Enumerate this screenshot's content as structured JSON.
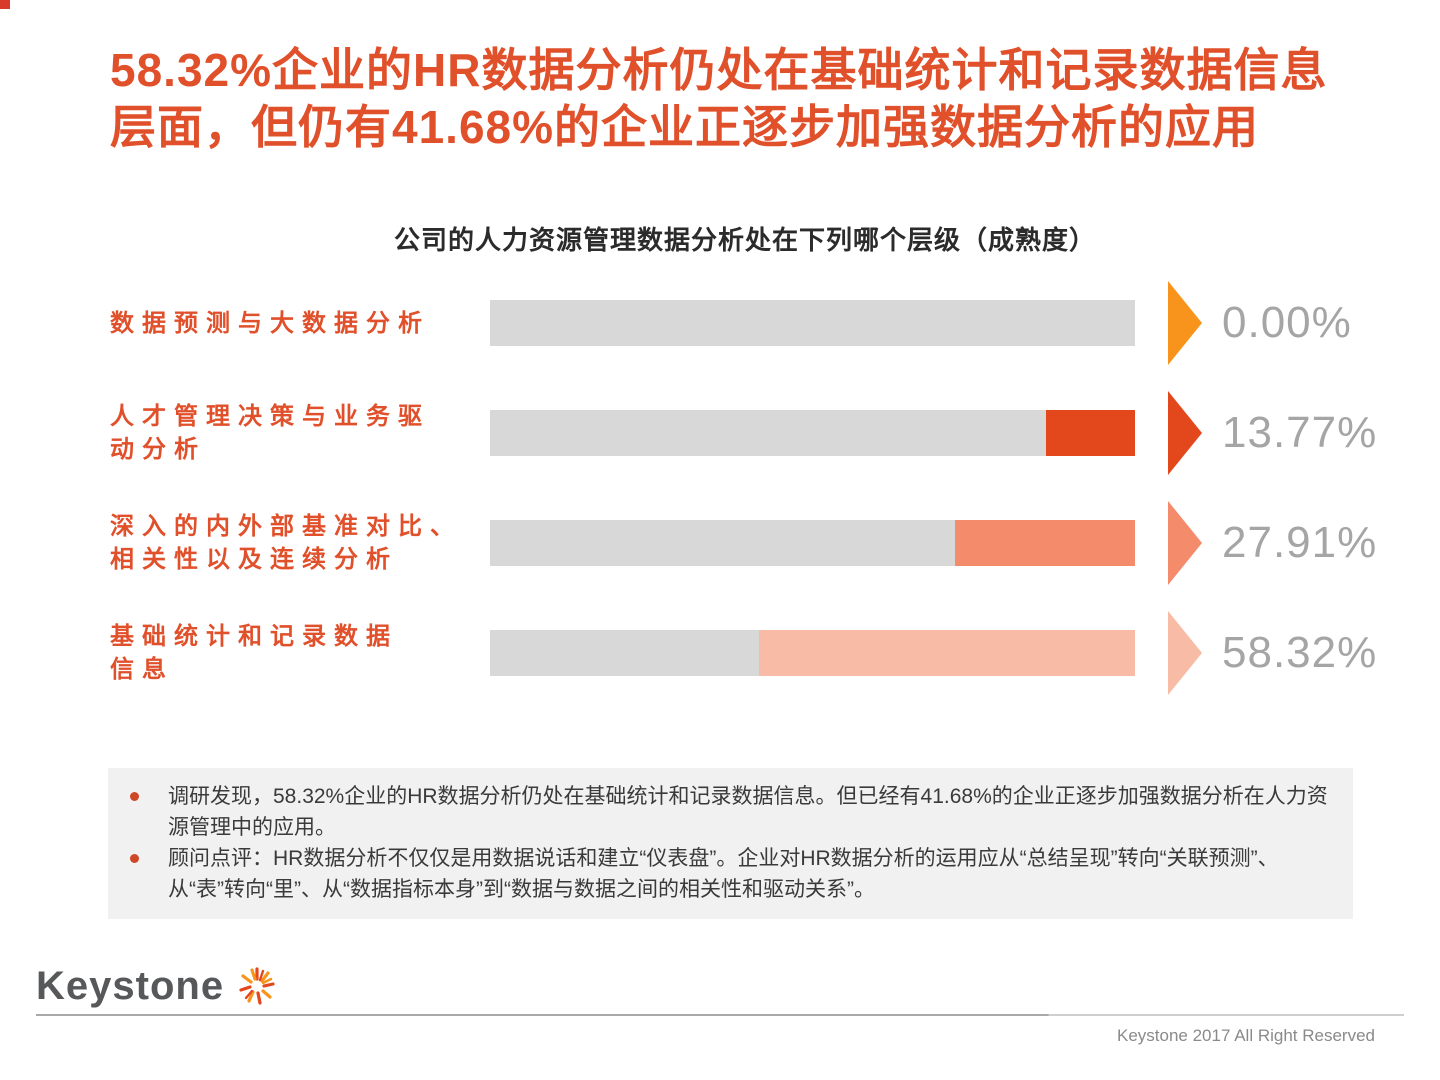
{
  "slide": {
    "corner_accent_color": "#d93b2b",
    "title_lines": [
      "58.32%企业的HR数据分析仍处在基础统计和记录数据信息",
      "层面，但仍有41.68%的企业正逐步加强数据分析的应用"
    ],
    "title_color": "#e0502b",
    "logo_text": "Keystone",
    "footer": "Keystone 2017 All Right Reserved"
  },
  "chart_data": {
    "type": "bar",
    "orientation": "horizontal",
    "title": "公司的人力资源管理数据分析处在下列哪个层级（成熟度）",
    "categories": [
      "数据预测与大数据分析",
      "人才管理决策与业务驱动分析",
      "深入的内外部基准对比、相关性以及连续分析",
      "基础统计和记录数据信息"
    ],
    "label_lines": [
      [
        "数据预测与大数据分析"
      ],
      [
        "人才管理决策与业务驱",
        "动分析"
      ],
      [
        "深入的内外部基准对比、",
        "相关性以及连续分析"
      ],
      [
        "基础统计和记录数据",
        "信息"
      ]
    ],
    "values": [
      0.0,
      13.77,
      27.91,
      58.32
    ],
    "value_labels": [
      "0.00%",
      "13.77%",
      "27.91%",
      "58.32%"
    ],
    "xlim": [
      0,
      100
    ],
    "bar_anchor": "right",
    "legend": "none",
    "grid": false,
    "track_color": "#d8d8d8",
    "row_colors": [
      "#f8941c",
      "#e3481d",
      "#f48b6b",
      "#f8bca6"
    ],
    "label_text_color": "#e0502b",
    "value_text_color": "#a5a5a5"
  },
  "notes": {
    "background_color": "#f1f1f1",
    "bullet_color": "#ce4727",
    "items": [
      "调研发现，58.32%企业的HR数据分析仍处在基础统计和记录数据信息。但已经有41.68%的企业正逐步加强数据分析在人力资源管理中的应用。",
      "顾问点评：HR数据分析不仅仅是用数据说话和建立“仪表盘”。企业对HR数据分析的运用应从“总结呈现”转向“关联预测”、从“表”转向“里”、从“数据指标本身”到“数据与数据之间的相关性和驱动关系”。"
    ]
  }
}
